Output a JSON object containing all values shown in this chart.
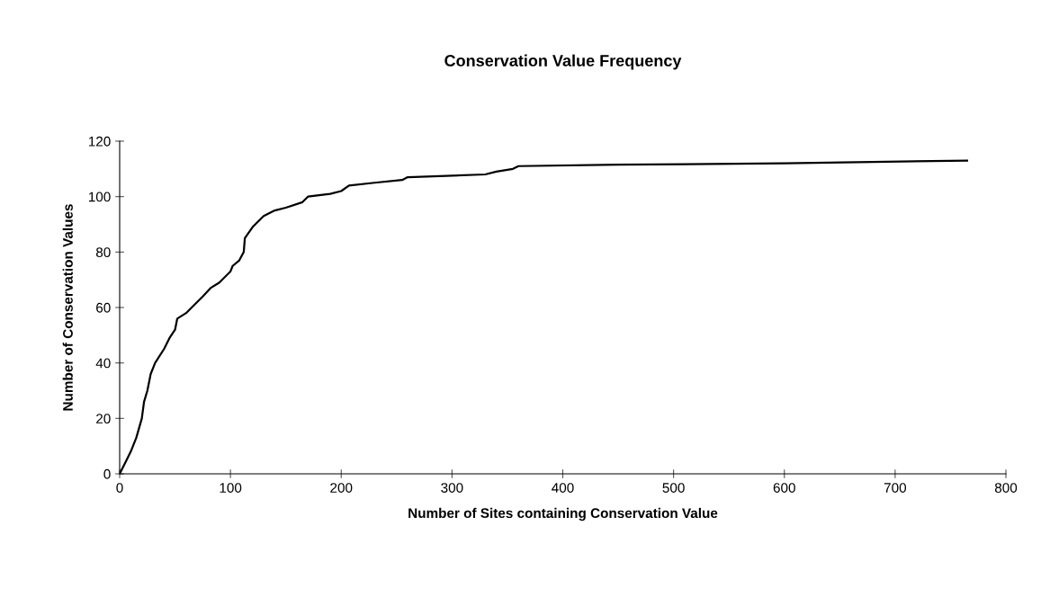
{
  "chart_data": {
    "type": "line",
    "title": "Conservation Value Frequency",
    "xlabel": "Number of Sites containing Conservation Value",
    "ylabel": "Number of Conservation Values",
    "x": [
      0,
      5,
      10,
      15,
      20,
      22,
      25,
      28,
      32,
      40,
      45,
      50,
      52,
      60,
      65,
      75,
      82,
      90,
      100,
      102,
      108,
      112,
      113,
      120,
      130,
      140,
      150,
      165,
      170,
      190,
      200,
      207,
      230,
      255,
      260,
      330,
      340,
      355,
      360,
      450,
      600,
      765
    ],
    "series": [
      {
        "color": "#000000",
        "values": [
          0,
          4,
          8,
          13,
          20,
          26,
          30,
          36,
          40,
          45,
          49,
          52,
          56,
          58,
          60,
          64,
          67,
          69,
          73,
          75,
          77,
          80,
          85,
          89,
          93,
          95,
          96,
          98,
          100,
          101,
          102,
          104,
          105,
          106,
          107,
          108,
          109,
          110,
          111,
          111.5,
          112,
          113
        ]
      }
    ],
    "xlim": [
      0,
      800
    ],
    "xticks": [
      0,
      100,
      200,
      300,
      400,
      500,
      600,
      700,
      800
    ],
    "ylim": [
      0,
      120
    ],
    "yticks": [
      0,
      20,
      40,
      60,
      80,
      100,
      120
    ],
    "grid": false,
    "legend": false,
    "marker": "none",
    "line_style": "solid"
  }
}
